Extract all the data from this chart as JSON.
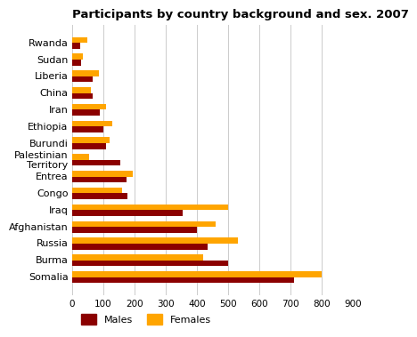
{
  "title": "Participants by country background and sex. 2007",
  "categories": [
    "Rwanda",
    "Sudan",
    "Liberia",
    "China",
    "Iran",
    "Ethiopia",
    "Burundi",
    "Palestinian\nTerritory",
    "Entrea",
    "Congo",
    "Iraq",
    "Afghanistan",
    "Russia",
    "Burma",
    "Somalia"
  ],
  "males": [
    25,
    30,
    65,
    65,
    90,
    100,
    110,
    155,
    175,
    178,
    355,
    400,
    435,
    500,
    710
  ],
  "females": [
    48,
    35,
    85,
    60,
    110,
    130,
    120,
    55,
    195,
    160,
    500,
    460,
    530,
    420,
    800
  ],
  "male_color": "#8B0000",
  "female_color": "#FFA500",
  "xlim": [
    0,
    900
  ],
  "xticks": [
    0,
    100,
    200,
    300,
    400,
    500,
    600,
    700,
    800,
    900
  ],
  "background_color": "#ffffff",
  "grid_color": "#cccccc",
  "title_fontsize": 9.5,
  "label_fontsize": 8,
  "tick_fontsize": 7.5
}
